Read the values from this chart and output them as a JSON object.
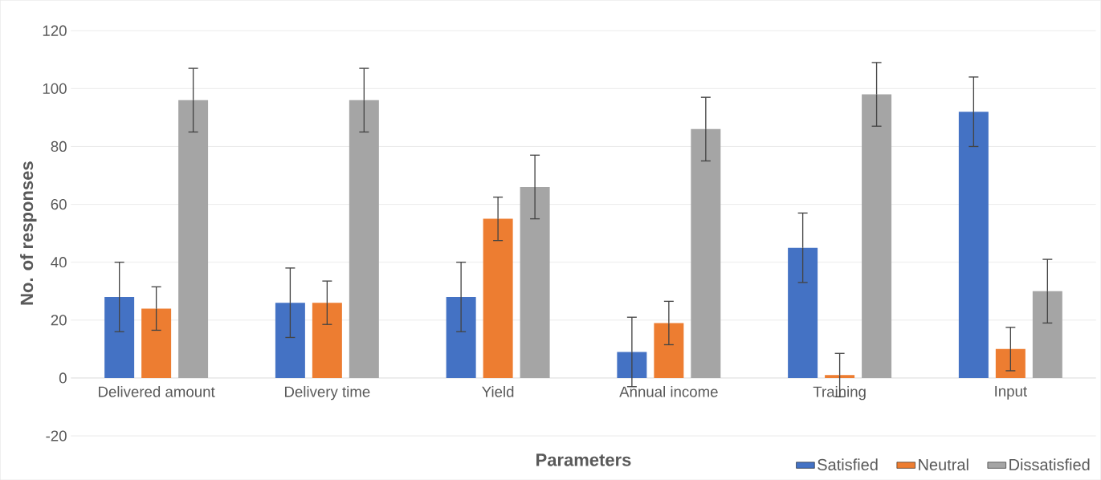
{
  "chart_data": {
    "type": "bar",
    "xlabel": "Parameters",
    "ylabel": "No. of responses",
    "categories": [
      "Delivered amount",
      "Delivery time",
      "Yield",
      "Annual income",
      "Training",
      "Input"
    ],
    "series": [
      {
        "name": "Satisfied",
        "color": "#4472c4",
        "values": [
          28,
          26,
          28,
          9,
          45,
          92
        ],
        "errors": [
          12,
          12,
          12,
          12,
          12,
          12
        ]
      },
      {
        "name": "Neutral",
        "color": "#ed7d31",
        "values": [
          24,
          26,
          55,
          19,
          1,
          10
        ],
        "errors": [
          7.5,
          7.5,
          7.5,
          7.5,
          7.5,
          7.5
        ]
      },
      {
        "name": "Dissatisfied",
        "color": "#a5a5a5",
        "values": [
          96,
          96,
          66,
          86,
          98,
          30
        ],
        "errors": [
          11,
          11,
          11,
          11,
          11,
          11
        ]
      }
    ],
    "ylim": [
      -20,
      120
    ],
    "yticks": [
      -20,
      0,
      20,
      40,
      60,
      80,
      100,
      120
    ],
    "grid": "y",
    "legend": "bottom right"
  }
}
